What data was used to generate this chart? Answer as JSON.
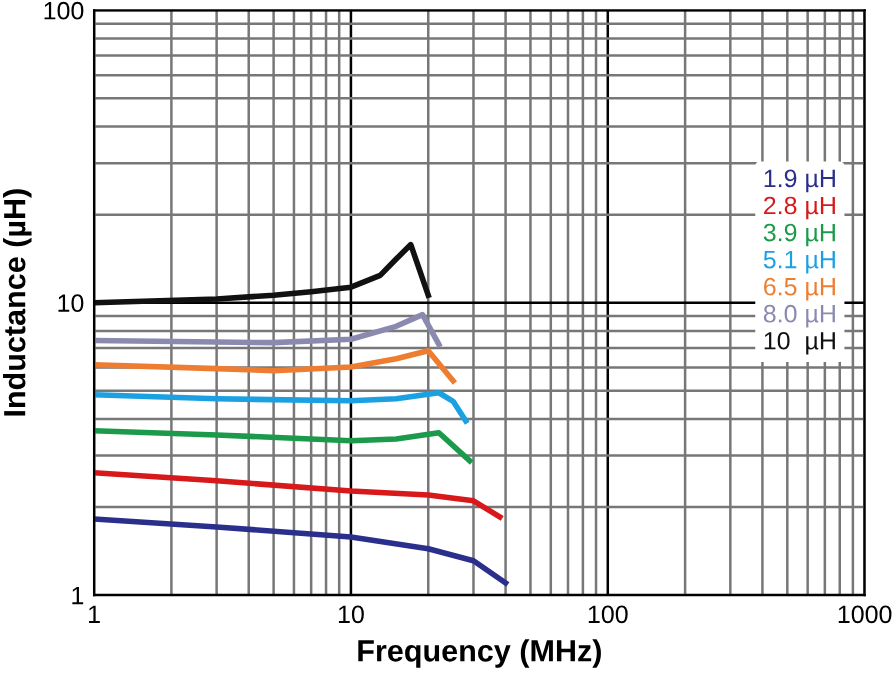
{
  "chart_data": {
    "type": "line",
    "xlabel": "Frequency (MHz)",
    "ylabel": "Inductance (µH)",
    "log": "xy",
    "xlim": [
      1,
      1000
    ],
    "ylim": [
      1,
      100
    ],
    "xticks": [
      1,
      10,
      100,
      1000
    ],
    "yticks": [
      1,
      10,
      100
    ],
    "grid": true,
    "legend": "right",
    "marker": "none",
    "line_style": "solid",
    "series": [
      {
        "name": "1.9 µH",
        "color": "#2b2f8c",
        "x": [
          1,
          3,
          10,
          20,
          30,
          40
        ],
        "values": [
          1.82,
          1.71,
          1.58,
          1.44,
          1.31,
          1.1
        ]
      },
      {
        "name": "2.8 µH",
        "color": "#d7191c",
        "x": [
          1,
          3,
          10,
          20,
          30,
          38
        ],
        "values": [
          2.62,
          2.46,
          2.27,
          2.2,
          2.1,
          1.85
        ]
      },
      {
        "name": "3.9 µH",
        "color": "#1a9a4a",
        "x": [
          1,
          3,
          10,
          15,
          22,
          29
        ],
        "values": [
          3.65,
          3.53,
          3.37,
          3.42,
          3.59,
          2.88
        ]
      },
      {
        "name": "5.1 µH",
        "color": "#1ba1e2",
        "x": [
          1,
          3,
          10,
          15,
          22,
          25,
          28
        ],
        "values": [
          4.84,
          4.69,
          4.62,
          4.69,
          4.92,
          4.6,
          3.94
        ]
      },
      {
        "name": "6.5 µH",
        "color": "#ee7d31",
        "x": [
          1,
          3,
          5,
          10,
          15,
          20,
          25
        ],
        "values": [
          6.13,
          5.95,
          5.85,
          6.03,
          6.43,
          6.85,
          5.4
        ]
      },
      {
        "name": "8.0 µH",
        "color": "#8a8ab0",
        "x": [
          1,
          5,
          10,
          15,
          19,
          22
        ],
        "values": [
          7.42,
          7.3,
          7.5,
          8.3,
          9.1,
          7.2
        ]
      },
      {
        "name": "10  µH",
        "color": "#111111",
        "x": [
          1,
          3,
          5,
          7,
          10,
          13,
          15,
          17.1,
          20
        ],
        "values": [
          10.0,
          10.3,
          10.6,
          10.9,
          11.3,
          12.4,
          14.1,
          15.8,
          10.6
        ]
      }
    ]
  }
}
